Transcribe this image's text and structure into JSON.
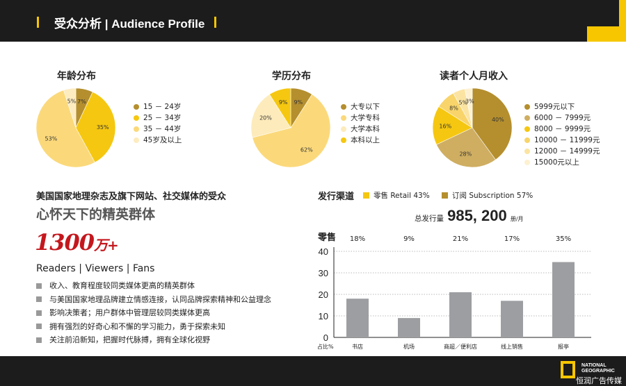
{
  "header": {
    "title": "受众分析 | Audience Profile"
  },
  "pies": [
    {
      "title": "年龄分布",
      "slices": [
        {
          "label": "15 － 24岁",
          "pct": 7,
          "color": "#b58f2e"
        },
        {
          "label": "25 － 34岁",
          "pct": 35,
          "color": "#f5c710"
        },
        {
          "label": "35 － 44岁",
          "pct": 53,
          "color": "#fbd97b"
        },
        {
          "label": "45岁及以上",
          "pct": 5,
          "color": "#fdecc0"
        }
      ]
    },
    {
      "title": "学历分布",
      "slices": [
        {
          "label": "大专以下",
          "pct": 9,
          "color": "#b58f2e"
        },
        {
          "label": "大学专科",
          "pct": 62,
          "color": "#fbd97b"
        },
        {
          "label": "大学本科",
          "pct": 20,
          "color": "#fdebbb"
        },
        {
          "label": "本科以上",
          "pct": 9,
          "color": "#f5c710"
        }
      ]
    },
    {
      "title": "读者个人月收入",
      "slices": [
        {
          "label": "5999元以下",
          "pct": 40,
          "color": "#b58f2e"
        },
        {
          "label": "6000 － 7999元",
          "pct": 28,
          "color": "#cfae62"
        },
        {
          "label": "8000 － 9999元",
          "pct": 16,
          "color": "#f5c710"
        },
        {
          "label": "10000 － 11999元",
          "pct": 8,
          "color": "#f8d46a"
        },
        {
          "label": "12000 － 14999元",
          "pct": 5,
          "color": "#fbe4a2"
        },
        {
          "label": "15000元以上",
          "pct": 3,
          "color": "#fdf1d2"
        }
      ]
    }
  ],
  "pie_labels": [
    [
      "7%",
      "35%",
      "53%",
      "5%"
    ],
    [
      "9%",
      "62%",
      "20%",
      "9%"
    ],
    [
      "40%",
      "28%",
      "16%",
      "8%",
      "5%",
      "3%"
    ]
  ],
  "audience": {
    "subtitle": "美国国家地理杂志及旗下网站、社交媒体的受众",
    "headline": "心怀天下的精英群体",
    "big_number": "1300",
    "big_unit": "万+",
    "tagline": "Readers | Viewers | Fans",
    "bullets": [
      "收入、教育程度较同类媒体更高的精英群体",
      "与美国国家地理品牌建立情感连接，认同品牌探索精神和公益理念",
      "影响决策者；用户群体中管理层较同类媒体更高",
      "拥有强烈的好奇心和不懈的学习能力，勇于探索未知",
      "关注前沿新知，把握时代脉搏，拥有全球化视野"
    ]
  },
  "channels": {
    "title": "发行渠道",
    "retail": "零售 Retail  43%",
    "subscription": "订阅 Subscription  57%",
    "retail_color": "#f5c710",
    "subscription_color": "#b58f2e",
    "circulation_label": "总发行量",
    "circulation_value": "985, 200",
    "circulation_unit": "册/月"
  },
  "chart_data": {
    "type": "bar",
    "title": "零售",
    "categories": [
      "书店",
      "机场",
      "商超／便利店",
      "线上销售",
      "报亭"
    ],
    "values": [
      18,
      9,
      21,
      17,
      35
    ],
    "labels": [
      "18%",
      "9%",
      "21%",
      "17%",
      "35%"
    ],
    "ylim": [
      0,
      40
    ],
    "yticks": [
      0,
      10,
      20,
      30,
      40
    ],
    "xlabel": "占比%",
    "grid": true,
    "bar_color": "#9d9ea1"
  },
  "footer": {
    "logo_text": "NATIONAL GEOGRAPHIC",
    "watermark": "恒润广告传媒"
  }
}
